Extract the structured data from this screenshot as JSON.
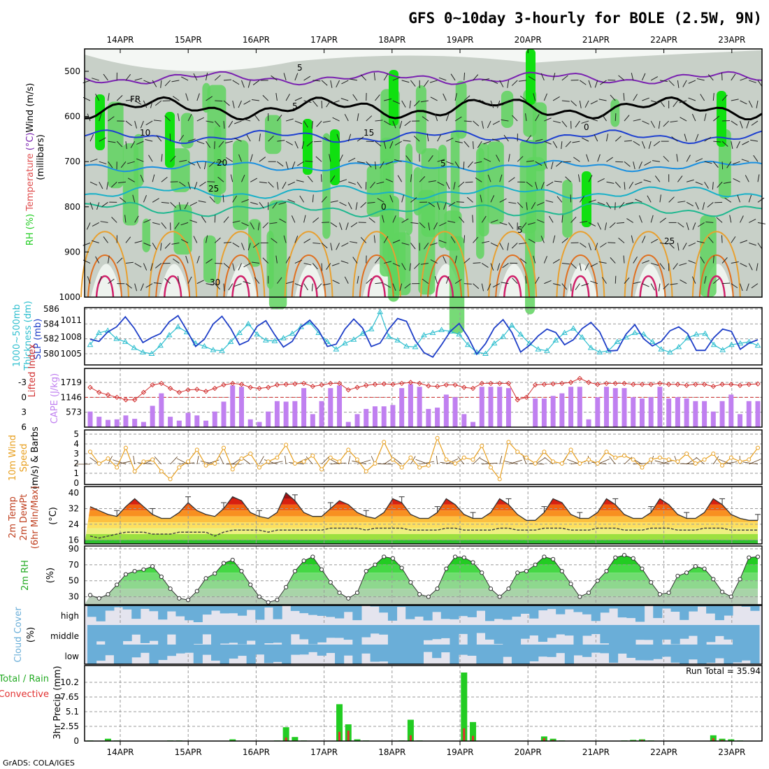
{
  "title": "GFS 0~10day 3-hourly for BOLE (2.5W, 9N)",
  "credit": "GrADS: COLA/IGES",
  "colors": {
    "rh_green": "#22cc22",
    "rh_grey": "#c8d0c8",
    "cloud": "#6aaed8",
    "cloud_bg": "#e4e4ee",
    "precip_total": "#22cc22",
    "precip_conv": "#e23030",
    "cape": "#c080f0",
    "lifted": "#d23030",
    "wind": "#e8a020",
    "slp": "#1f3fc8",
    "thick": "#2fbfcf"
  },
  "chart_data": {
    "type": "meteogram",
    "x_dates": [
      "14APR",
      "15APR",
      "16APR",
      "17APR",
      "18APR",
      "19APR",
      "20APR",
      "21APR",
      "22APR",
      "23APR"
    ],
    "panels": {
      "upper_air": {
        "ylabel": "(millibars)",
        "left_labels": [
          "RH (%)",
          "Temperature (°C)",
          "Wind (m/s)"
        ],
        "yticks": [
          "500",
          "600",
          "700",
          "800",
          "900",
          "1000"
        ],
        "isotherm_labels": [
          "5",
          "FR",
          "5",
          "10",
          "15",
          "20",
          "25",
          "0",
          "5",
          "5",
          "0",
          "25",
          "30"
        ]
      },
      "slp_thickness": {
        "left_labels": [
          "1000~500mb",
          "Thickness (dm)"
        ],
        "right_label": "SLP (mb)",
        "thick_ticks": [
          "586",
          "584",
          "582",
          "580"
        ],
        "slp_ticks": [
          "1011",
          "1008",
          "1005"
        ],
        "slp": [
          1007.6,
          1007.2,
          1008.9,
          1009.8,
          1011.6,
          1009.6,
          1007.0,
          1007.9,
          1008.6,
          1010.7,
          1011.8,
          1009.2,
          1006.3,
          1007.6,
          1010.3,
          1011.7,
          1009.5,
          1006.6,
          1007.3,
          1009.9,
          1010.9,
          1008.4,
          1006.2,
          1007.2,
          1009.8,
          1011.0,
          1009.2,
          1006.3,
          1006.7,
          1009.4,
          1011.2,
          1009.6,
          1006.3,
          1006.9,
          1009.4,
          1011.3,
          1010.8,
          1007.4,
          1005.2,
          1004.4,
          1006.6,
          1009.0,
          1010.4,
          1008.0,
          1004.9,
          1006.8,
          1009.6,
          1011.1,
          1008.8,
          1005.3,
          1006.5,
          1008.2,
          1009.4,
          1008.8,
          1006.6,
          1007.5,
          1009.5,
          1010.6,
          1008.9,
          1005.5,
          1005.6,
          1008.5,
          1010.2,
          1007.7,
          1006.4,
          1007.2,
          1009.1,
          1009.8,
          1008.6,
          1005.6,
          1005.6,
          1007.9,
          1009.4,
          1009.0,
          1005.8,
          1006.9,
          1007.5
        ],
        "thickness": [
          581.2,
          582.8,
          583.1,
          582.0,
          581.6,
          580.8,
          580.2,
          580.0,
          581.1,
          582.5,
          583.6,
          582.9,
          581.4,
          581.0,
          580.5,
          580.4,
          581.6,
          582.8,
          584.0,
          582.6,
          581.8,
          581.7,
          582.1,
          582.7,
          583.6,
          584.2,
          582.8,
          581.6,
          580.6,
          581.4,
          581.9,
          582.7,
          583.3,
          585.6,
          582.3,
          581.8,
          581.0,
          580.9,
          582.5,
          582.8,
          583.2,
          583.0,
          582.6,
          581.2,
          580.2,
          580.0,
          581.4,
          582.3,
          583.8,
          582.6,
          581.4,
          580.6,
          580.4,
          581.8,
          582.8,
          583.4,
          582.2,
          580.8,
          580.2,
          580.4,
          581.6,
          582.2,
          582.8,
          582.6,
          581.6,
          580.6,
          580.2,
          580.9,
          582.1,
          582.6,
          582.7,
          581.2,
          580.5,
          581.2,
          581.4,
          581.6,
          581.1
        ]
      },
      "cape_li": {
        "left_labels": [
          "Lifted Index",
          "CAPE (J/kg)"
        ],
        "li_ticks": [
          "-3",
          "0",
          "3",
          "6"
        ],
        "cape_ticks": [
          "1719",
          "1146",
          "573"
        ],
        "cape": [
          600,
          400,
          280,
          300,
          450,
          320,
          200,
          820,
          1300,
          400,
          250,
          550,
          450,
          250,
          600,
          980,
          1600,
          1550,
          300,
          200,
          600,
          1000,
          980,
          1000,
          1500,
          500,
          1000,
          1500,
          1600,
          200,
          500,
          700,
          800,
          800,
          850,
          1500,
          1650,
          1550,
          700,
          750,
          1250,
          1150,
          500,
          200,
          1550,
          1550,
          1550,
          1500,
          0,
          0,
          1100,
          1100,
          1200,
          1300,
          1550,
          1550,
          300,
          1150,
          1550,
          1500,
          1500,
          1150,
          1100,
          1150,
          1550,
          1100,
          1150,
          1100,
          1000,
          1000,
          600,
          1000,
          1250,
          500,
          1000,
          1000
        ],
        "li": [
          -2.0,
          -1.0,
          -0.5,
          0.0,
          0.5,
          0.5,
          -1.0,
          -2.5,
          -2.8,
          -1.8,
          -1.0,
          -1.5,
          -1.6,
          -1.2,
          -1.8,
          -2.5,
          -2.8,
          -2.6,
          -2.0,
          -1.8,
          -2.0,
          -2.5,
          -2.6,
          -2.7,
          -2.8,
          -2.2,
          -2.5,
          -2.8,
          -2.8,
          -1.5,
          -2.0,
          -2.4,
          -2.6,
          -2.7,
          -2.6,
          -2.8,
          -3.0,
          -2.8,
          -2.3,
          -2.2,
          -2.5,
          -2.5,
          -2.0,
          -1.8,
          -2.8,
          -2.8,
          -2.8,
          -2.8,
          0.5,
          0.0,
          -2.5,
          -2.6,
          -2.7,
          -2.8,
          -3.0,
          -3.8,
          -3.0,
          -2.6,
          -2.8,
          -2.8,
          -2.8,
          -2.6,
          -2.6,
          -2.6,
          -2.8,
          -2.6,
          -2.6,
          -2.4,
          -2.6,
          -2.6,
          -2.2,
          -2.6,
          -2.6,
          -2.4,
          -2.6,
          -2.7
        ]
      },
      "wind10m": {
        "left_labels": [
          "10m Wind",
          "Speed",
          "(m/s) & Barbs"
        ],
        "yticks": [
          "5",
          "4",
          "3",
          "2",
          "1",
          "0"
        ],
        "speed": [
          3.2,
          2.0,
          2.5,
          1.6,
          3.6,
          1.2,
          2.2,
          2.4,
          1.2,
          0.4,
          1.6,
          2.2,
          3.4,
          1.8,
          2.0,
          3.6,
          1.4,
          2.5,
          3.0,
          1.6,
          2.2,
          2.6,
          3.9,
          2.0,
          2.2,
          2.8,
          1.4,
          2.6,
          2.2,
          3.4,
          2.4,
          1.2,
          2.0,
          4.2,
          2.4,
          1.6,
          2.6,
          1.6,
          1.8,
          4.6,
          2.4,
          2.0,
          2.6,
          2.4,
          3.8,
          1.6,
          0.4,
          4.2,
          3.2,
          2.6,
          2.0,
          3.2,
          2.2,
          2.0,
          3.4,
          2.0,
          2.4,
          2.0,
          3.2,
          2.6,
          2.8,
          2.4,
          1.6,
          2.4,
          2.6,
          2.4,
          2.2,
          3.0,
          2.0,
          2.4,
          3.0,
          1.8,
          2.6,
          2.2,
          2.4,
          3.6
        ]
      },
      "temp2m": {
        "left_labels": [
          "2m Temp",
          "2m DewPt",
          "(6hr Min/Max)"
        ],
        "ylabel": "(°C)",
        "yticks": [
          "40",
          "32",
          "24",
          "16"
        ],
        "temp": [
          33,
          31,
          29,
          28,
          33,
          37,
          33,
          29,
          27,
          27,
          30,
          35,
          31,
          29,
          28,
          32,
          38,
          36,
          30,
          28,
          27,
          30,
          40,
          36,
          30,
          28,
          28,
          32,
          36,
          34,
          30,
          28,
          27,
          30,
          37,
          35,
          29,
          27,
          27,
          30,
          37,
          34,
          29,
          27,
          27,
          30,
          37,
          34,
          29,
          26,
          26,
          30,
          37,
          35,
          29,
          27,
          27,
          30,
          37,
          34,
          29,
          27,
          27,
          30,
          37,
          34,
          29,
          27,
          27,
          30,
          37,
          34,
          29,
          27,
          26,
          26
        ],
        "dew": [
          18,
          17,
          18,
          19,
          20,
          20,
          20,
          19,
          19,
          19,
          20,
          20,
          20,
          20,
          18,
          20,
          21,
          21,
          21,
          21,
          20,
          21,
          21,
          21,
          21,
          21,
          21,
          22,
          22,
          22,
          22,
          21,
          22,
          22,
          22,
          22,
          21,
          21,
          21,
          21,
          22,
          22,
          21,
          21,
          21,
          21,
          22,
          22,
          21,
          21,
          21,
          22,
          22,
          22,
          21,
          21,
          21,
          22,
          22,
          22,
          21,
          21,
          21,
          22,
          22,
          22,
          21,
          21,
          21,
          22,
          22,
          22,
          21,
          21,
          21,
          21
        ]
      },
      "rh2m": {
        "left_label": "2m RH",
        "ylabel": "(%)",
        "yticks": [
          "90",
          "70",
          "50",
          "30"
        ],
        "values": [
          32,
          28,
          33,
          45,
          58,
          62,
          64,
          68,
          55,
          40,
          28,
          26,
          37,
          53,
          59,
          72,
          76,
          62,
          45,
          30,
          23,
          26,
          42,
          62,
          75,
          80,
          64,
          48,
          35,
          28,
          35,
          62,
          70,
          80,
          78,
          66,
          48,
          33,
          30,
          40,
          65,
          80,
          79,
          73,
          60,
          40,
          30,
          40,
          60,
          62,
          70,
          80,
          77,
          62,
          46,
          30,
          35,
          50,
          62,
          79,
          82,
          78,
          65,
          48,
          33,
          35,
          56,
          60,
          68,
          65,
          52,
          36,
          30,
          52,
          79,
          80
        ]
      },
      "cloud": {
        "left_labels": [
          "Cloud Cover",
          "(%)"
        ],
        "levels": [
          "high",
          "middle",
          "low"
        ]
      },
      "precip": {
        "left_labels": [
          "Total / Rain",
          "Convective"
        ],
        "ylabel": "3hr Precip (mm)",
        "yticks": [
          "10.2",
          "7.65",
          "5.1",
          "2.55",
          "0"
        ],
        "run_total_label": "Run Total = 35.94",
        "total": [
          0.1,
          0,
          0.4,
          0.1,
          0,
          0,
          0,
          0,
          0,
          0.1,
          0.1,
          0,
          0,
          0,
          0,
          0,
          0.3,
          0,
          0,
          0,
          0,
          0.1,
          2.4,
          0.7,
          0.1,
          0,
          0,
          0,
          6.4,
          2.9,
          0.3,
          0.1,
          0,
          0,
          0,
          0.1,
          3.7,
          0.1,
          0,
          0,
          0,
          0,
          11.9,
          3.3,
          0,
          0,
          0,
          0,
          0,
          0,
          0,
          0.8,
          0.4,
          0.1,
          0,
          0,
          0,
          0,
          0,
          0,
          0.1,
          0.2,
          0.3,
          0.1,
          0,
          0,
          0,
          0,
          0,
          0,
          1.0,
          0.4,
          0.3,
          0.1,
          0,
          0
        ],
        "convective": [
          0,
          0,
          0.1,
          0,
          0,
          0,
          0,
          0,
          0,
          0,
          0,
          0,
          0,
          0,
          0,
          0,
          0.1,
          0,
          0,
          0,
          0,
          0,
          0.6,
          0.1,
          0,
          0,
          0,
          0,
          1.6,
          1.8,
          0,
          0,
          0,
          0,
          0,
          0,
          1.0,
          0,
          0,
          0,
          0,
          0,
          2.2,
          0.9,
          0,
          0,
          0,
          0,
          0,
          0,
          0,
          0.5,
          0.2,
          0,
          0,
          0,
          0,
          0,
          0,
          0,
          0,
          0.1,
          0.2,
          0,
          0,
          0,
          0,
          0,
          0,
          0,
          0.5,
          0.2,
          0.1,
          0,
          0,
          0
        ]
      }
    }
  }
}
